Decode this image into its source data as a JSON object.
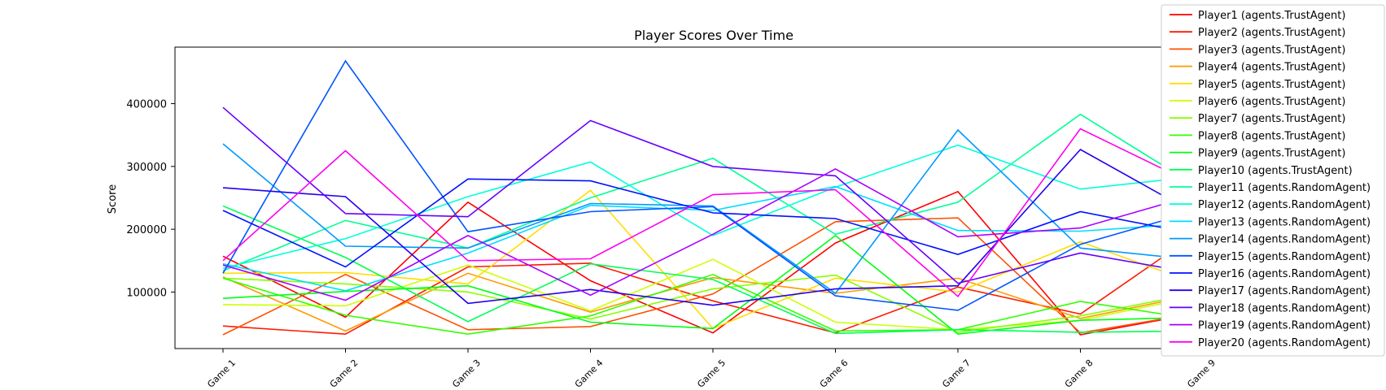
{
  "chart_data": {
    "type": "line",
    "title": "Player Scores Over Time",
    "xlabel": "",
    "ylabel": "Score",
    "categories": [
      "Game 1",
      "Game 2",
      "Game 3",
      "Game 4",
      "Game 5",
      "Game 6",
      "Game 7",
      "Game 8",
      "Game 9"
    ],
    "yticks": [
      100000,
      200000,
      300000,
      400000
    ],
    "ylim": [
      10000,
      490000
    ],
    "grid": false,
    "legend_position": "top-right",
    "series": [
      {
        "name": "Player1 (agents.TrustAgent)",
        "color": "#ff0000",
        "values": [
          157000,
          60000,
          243000,
          118000,
          35000,
          178000,
          260000,
          32000,
          68000
        ]
      },
      {
        "name": "Player2 (agents.TrustAgent)",
        "color": "#ff1a00",
        "values": [
          46000,
          33000,
          140000,
          146000,
          86000,
          35000,
          108000,
          65000,
          200000
        ]
      },
      {
        "name": "Player3 (agents.TrustAgent)",
        "color": "#ff5000",
        "values": [
          32000,
          128000,
          40000,
          45000,
          97000,
          212000,
          218000,
          35000,
          68000
        ]
      },
      {
        "name": "Player4 (agents.TrustAgent)",
        "color": "#ff9900",
        "values": [
          124000,
          38000,
          130000,
          68000,
          123000,
          98000,
          122000,
          58000,
          98000
        ]
      },
      {
        "name": "Player5 (agents.TrustAgent)",
        "color": "#ffdd00",
        "values": [
          130000,
          131000,
          113000,
          262000,
          42000,
          122000,
          100000,
          180000,
          110000
        ]
      },
      {
        "name": "Player6 (agents.TrustAgent)",
        "color": "#ccff00",
        "values": [
          80000,
          78000,
          143000,
          70000,
          152000,
          52000,
          40000,
          55000,
          95000
        ]
      },
      {
        "name": "Player7 (agents.TrustAgent)",
        "color": "#88ff00",
        "values": [
          122000,
          113000,
          100000,
          57000,
          105000,
          127000,
          36000,
          62000,
          100000
        ]
      },
      {
        "name": "Player8 (agents.TrustAgent)",
        "color": "#33ff00",
        "values": [
          122000,
          63000,
          33000,
          62000,
          128000,
          38000,
          40000,
          85000,
          55000
        ]
      },
      {
        "name": "Player9 (agents.TrustAgent)",
        "color": "#00ff11",
        "values": [
          90000,
          101000,
          110000,
          52000,
          42000,
          190000,
          33000,
          55000,
          60000
        ]
      },
      {
        "name": "Player10 (agents.TrustAgent)",
        "color": "#00ff55",
        "values": [
          237000,
          155000,
          53000,
          145000,
          120000,
          34000,
          40000,
          36000,
          38000
        ]
      },
      {
        "name": "Player11 (agents.RandomAgent)",
        "color": "#00ff99",
        "values": [
          134000,
          214000,
          170000,
          250000,
          313000,
          192000,
          243000,
          383000,
          262000
        ]
      },
      {
        "name": "Player12 (agents.RandomAgent)",
        "color": "#00ffdd",
        "values": [
          138000,
          185000,
          252000,
          307000,
          190000,
          267000,
          334000,
          264000,
          285000
        ]
      },
      {
        "name": "Player13 (agents.RandomAgent)",
        "color": "#00ddff",
        "values": [
          145000,
          102000,
          162000,
          238000,
          230000,
          268000,
          198000,
          197000,
          210000
        ]
      },
      {
        "name": "Player14 (agents.RandomAgent)",
        "color": "#0099ff",
        "values": [
          336000,
          173000,
          170000,
          241000,
          237000,
          98000,
          358000,
          170000,
          150000
        ]
      },
      {
        "name": "Player15 (agents.RandomAgent)",
        "color": "#0055ff",
        "values": [
          130000,
          468000,
          196000,
          228000,
          236000,
          94000,
          71000,
          176000,
          232000
        ]
      },
      {
        "name": "Player16 (agents.RandomAgent)",
        "color": "#0011ff",
        "values": [
          230000,
          140000,
          280000,
          277000,
          226000,
          217000,
          160000,
          228000,
          190000
        ]
      },
      {
        "name": "Player17 (agents.RandomAgent)",
        "color": "#2200ee",
        "values": [
          266000,
          252000,
          82000,
          104000,
          79000,
          105000,
          110000,
          327000,
          218000
        ]
      },
      {
        "name": "Player18 (agents.RandomAgent)",
        "color": "#6600ff",
        "values": [
          394000,
          225000,
          220000,
          373000,
          300000,
          285000,
          114000,
          162000,
          128000
        ]
      },
      {
        "name": "Player19 (agents.RandomAgent)",
        "color": "#aa00ff",
        "values": [
          143000,
          87000,
          190000,
          95000,
          192000,
          296000,
          188000,
          202000,
          258000
        ]
      },
      {
        "name": "Player20 (agents.RandomAgent)",
        "color": "#ff00ee",
        "values": [
          150000,
          325000,
          150000,
          153000,
          255000,
          263000,
          93000,
          360000,
          265000
        ]
      }
    ]
  }
}
